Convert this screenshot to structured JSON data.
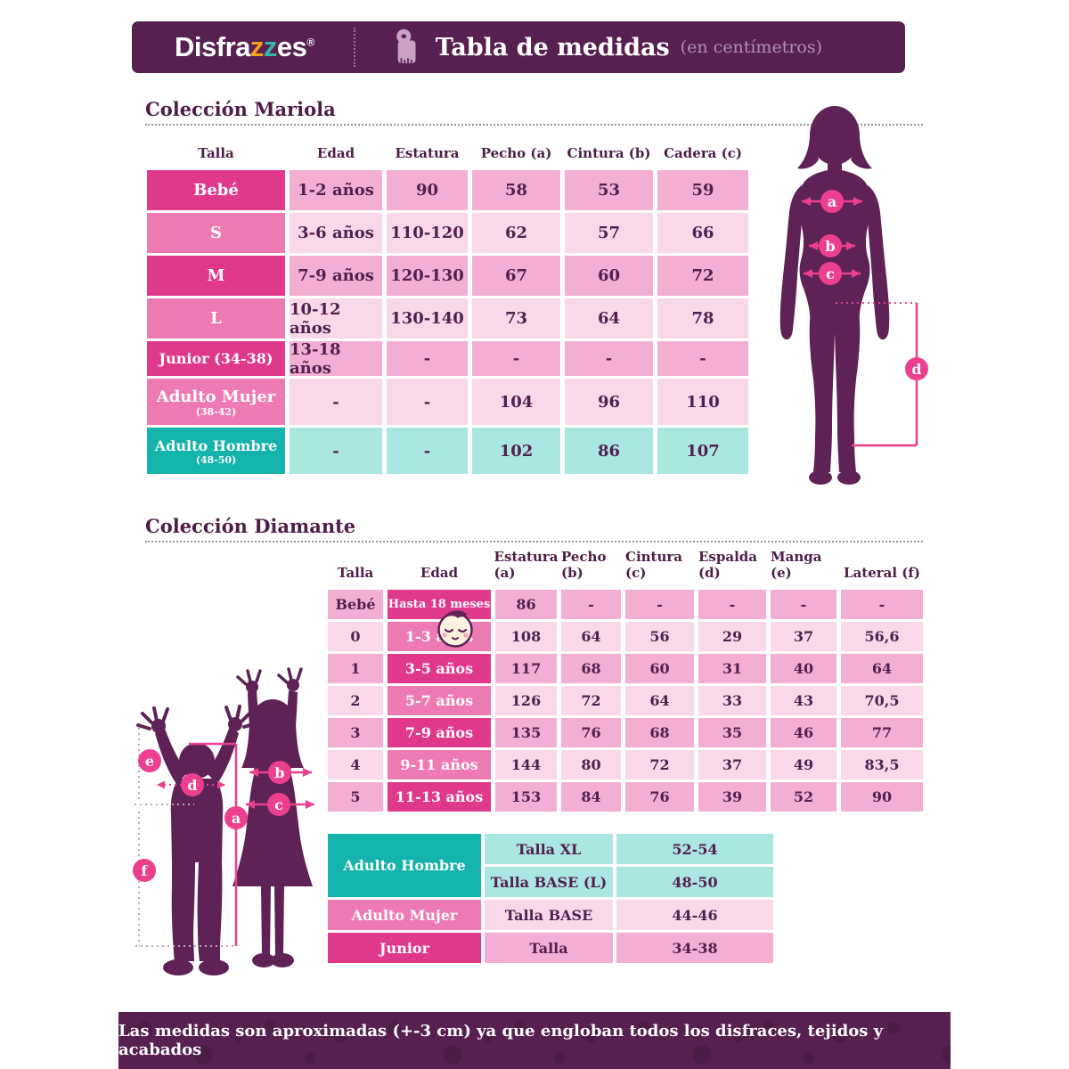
{
  "header": {
    "logo_prefix": "Disfra",
    "logo_z1": "z",
    "logo_z2": "z",
    "logo_suffix": "es",
    "logo_reg": "®",
    "title": "Tabla de medidas",
    "subtitle": "(en centímetros)"
  },
  "mariola": {
    "title": "Colección Mariola",
    "columns": [
      "Talla",
      "Edad",
      "Estatura",
      "Pecho (a)",
      "Cintura (b)",
      "Cadera (c)"
    ],
    "rows": [
      {
        "talla": "Bebé",
        "talla_sub": "",
        "label_style": "strong",
        "cells": [
          "1-2 años",
          "90",
          "58",
          "53",
          "59"
        ],
        "cell_style": "medium"
      },
      {
        "talla": "S",
        "talla_sub": "",
        "label_style": "medium",
        "cells": [
          "3-6 años",
          "110-120",
          "62",
          "57",
          "66"
        ],
        "cell_style": "light"
      },
      {
        "talla": "M",
        "talla_sub": "",
        "label_style": "strong",
        "cells": [
          "7-9 años",
          "120-130",
          "67",
          "60",
          "72"
        ],
        "cell_style": "medium"
      },
      {
        "talla": "L",
        "talla_sub": "",
        "label_style": "medium",
        "cells": [
          "10-12 años",
          "130-140",
          "73",
          "64",
          "78"
        ],
        "cell_style": "light"
      },
      {
        "talla": "Junior (34-38)",
        "talla_sub": "",
        "label_style": "strong",
        "cells": [
          "13-18 años",
          "-",
          "-",
          "-",
          "-"
        ],
        "cell_style": "medium"
      },
      {
        "talla": "Adulto Mujer",
        "talla_sub": "(38-42)",
        "label_style": "medium",
        "cells": [
          "-",
          "-",
          "104",
          "96",
          "110"
        ],
        "cell_style": "light"
      },
      {
        "talla": "Adulto Hombre",
        "talla_sub": "(48-50)",
        "label_style": "teal",
        "cells": [
          "-",
          "-",
          "102",
          "86",
          "107"
        ],
        "cell_style": "teal"
      }
    ]
  },
  "diamante": {
    "title": "Colección Diamante",
    "columns": [
      "Talla",
      "Edad",
      "Estatura (a)",
      "Pecho (b)",
      "Cintura (c)",
      "Espalda (d)",
      "Manga (e)",
      "Lateral (f)"
    ],
    "rows": [
      {
        "talla": "Bebé",
        "talla_style": "medium",
        "edad": "Hasta 18 meses",
        "edad_style": "strong",
        "edad_small": true,
        "cells": [
          "86",
          "-",
          "-",
          "-",
          "-",
          "-"
        ],
        "cell_style": "medium"
      },
      {
        "talla": "0",
        "talla_style": "light",
        "edad": "1-3 años",
        "edad_style": "medium",
        "edad_small": false,
        "cells": [
          "108",
          "64",
          "56",
          "29",
          "37",
          "56,6"
        ],
        "cell_style": "light"
      },
      {
        "talla": "1",
        "talla_style": "medium",
        "edad": "3-5 años",
        "edad_style": "strong",
        "edad_small": false,
        "cells": [
          "117",
          "68",
          "60",
          "31",
          "40",
          "64"
        ],
        "cell_style": "medium"
      },
      {
        "talla": "2",
        "talla_style": "light",
        "edad": "5-7 años",
        "edad_style": "medium",
        "edad_small": false,
        "cells": [
          "126",
          "72",
          "64",
          "33",
          "43",
          "70,5"
        ],
        "cell_style": "light"
      },
      {
        "talla": "3",
        "talla_style": "medium",
        "edad": "7-9 años",
        "edad_style": "strong",
        "edad_small": false,
        "cells": [
          "135",
          "76",
          "68",
          "35",
          "46",
          "77"
        ],
        "cell_style": "medium"
      },
      {
        "talla": "4",
        "talla_style": "light",
        "edad": "9-11 años",
        "edad_style": "medium",
        "edad_small": false,
        "cells": [
          "144",
          "80",
          "72",
          "37",
          "49",
          "83,5"
        ],
        "cell_style": "light"
      },
      {
        "talla": "5",
        "talla_style": "medium",
        "edad": "11-13 años",
        "edad_style": "strong",
        "edad_small": false,
        "cells": [
          "153",
          "84",
          "76",
          "39",
          "52",
          "90"
        ],
        "cell_style": "medium"
      }
    ]
  },
  "adult": {
    "rows": [
      {
        "label": "Adulto Hombre",
        "label_style": "teal",
        "label_rowspan": 2,
        "cells": [
          "Talla XL",
          "52-54"
        ],
        "cell_style": "teal"
      },
      {
        "cells": [
          "Talla BASE (L)",
          "48-50"
        ],
        "cell_style": "teal"
      },
      {
        "label": "Adulto Mujer",
        "label_style": "medium",
        "label_rowspan": 1,
        "cells": [
          "Talla BASE",
          "44-46"
        ],
        "cell_style": "light"
      },
      {
        "label": "Junior",
        "label_style": "strong",
        "label_rowspan": 1,
        "cells": [
          "Talla",
          "34-38"
        ],
        "cell_style": "medium"
      }
    ]
  },
  "figures": {
    "woman_markers": [
      "a",
      "b",
      "c",
      "d"
    ],
    "kids_markers": [
      "a",
      "b",
      "c",
      "d",
      "e",
      "f"
    ]
  },
  "footer": {
    "note": "Las medidas son aproximadas (+-3 cm) ya que engloban todos los disfraces, tejidos y acabados"
  },
  "colors": {
    "hdr": "#572051",
    "sil": "#5e2256",
    "strong": "#e0398c",
    "medium": "#ee7ab4",
    "cellpink": "#f2afd3",
    "celllight": "#f9d9e9",
    "teal": "#14b3ab",
    "cellteal": "#abe7e1",
    "txt": "#522050",
    "accent": "#ec3f8e",
    "subtle": "#b48fb1"
  }
}
